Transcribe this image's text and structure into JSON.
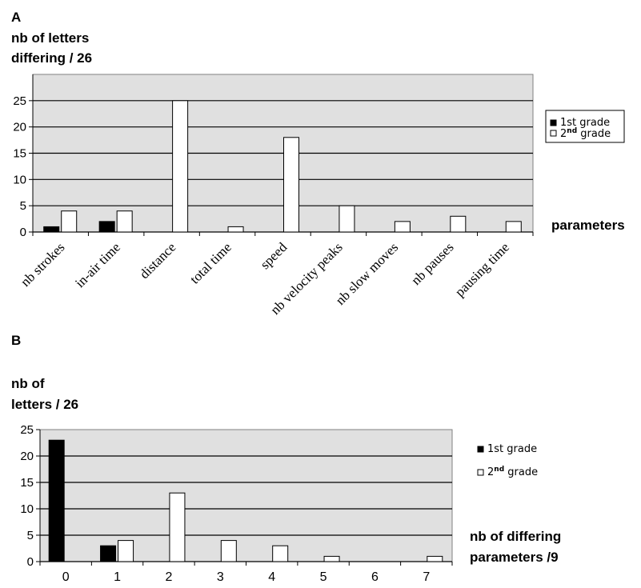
{
  "panels": {
    "a_letter": "A",
    "b_letter": "B"
  },
  "colors": {
    "plot_bg": "#e0e0e0",
    "first_grade": "#000000",
    "second_grade": "#ffffff"
  },
  "chart_data": [
    {
      "type": "bar",
      "panel": "A",
      "ylabel_lines": [
        "nb of letters",
        "differing / 26"
      ],
      "xlabel": "parameters",
      "ylim": [
        0,
        30
      ],
      "yticks": [
        0,
        5,
        10,
        15,
        20,
        25
      ],
      "grid": true,
      "legend_position": "right",
      "categories": [
        "nb strokes",
        "in-air time",
        "distance",
        "total time",
        "speed",
        "nb velocity peaks",
        "nb slow moves",
        "nb pauses",
        "pausing time"
      ],
      "series": [
        {
          "name": "1st grade",
          "values": [
            1,
            2,
            0,
            0,
            0,
            0,
            0,
            0,
            0
          ]
        },
        {
          "name": "2nd grade",
          "values": [
            4,
            4,
            25,
            1,
            18,
            5,
            2,
            3,
            2
          ]
        }
      ]
    },
    {
      "type": "bar",
      "panel": "B",
      "ylabel_lines": [
        "nb of",
        "letters / 26"
      ],
      "xlabel_lines": [
        "nb of differing",
        "parameters /9"
      ],
      "ylim": [
        0,
        25
      ],
      "yticks": [
        0,
        5,
        10,
        15,
        20,
        25
      ],
      "grid": true,
      "legend_position": "right",
      "categories": [
        "0",
        "1",
        "2",
        "3",
        "4",
        "5",
        "6",
        "7"
      ],
      "series": [
        {
          "name": "1st grade",
          "values": [
            23,
            3,
            0,
            0,
            0,
            0,
            0,
            0
          ]
        },
        {
          "name": "2nd grade",
          "values": [
            0,
            4,
            13,
            4,
            3,
            1,
            0,
            1
          ]
        }
      ]
    }
  ]
}
